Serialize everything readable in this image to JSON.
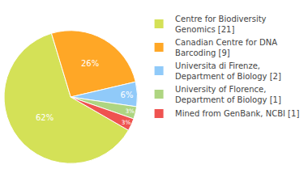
{
  "chart_data": {
    "type": "pie",
    "categories": [
      "Centre for Biodiversity\nGenomics [21]",
      "Canadian Centre for DNA\nBarcoding [9]",
      "Universita di Firenze,\nDepartment of Biology [2]",
      "University of Florence,\nDepartment of Biology [1]",
      "Mined from GenBank, NCBI [1]"
    ],
    "values": [
      62,
      26,
      6,
      3,
      3
    ],
    "value_labels": [
      "62%",
      "26%",
      "6%",
      "3%",
      "3%"
    ],
    "colors": [
      "#d4e157",
      "#ffa726",
      "#90caf9",
      "#aed581",
      "#ef5350"
    ],
    "data_labels": true,
    "legend": "upper right"
  }
}
